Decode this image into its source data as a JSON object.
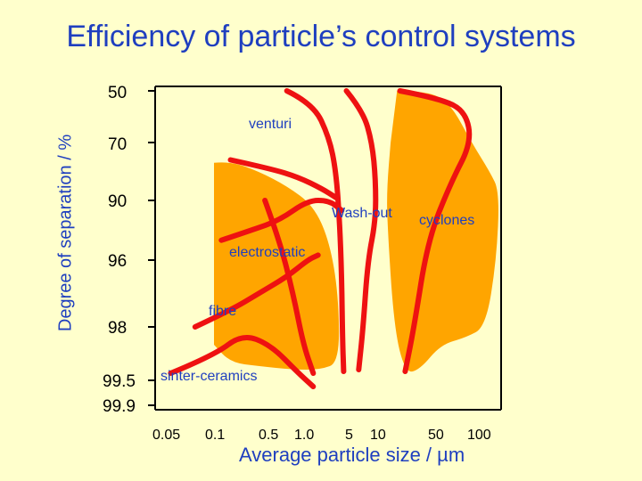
{
  "colors": {
    "background": "#ffffcc",
    "title": "#1f3fbf",
    "region_fill": "#ffa500",
    "curve": "#ee1111"
  },
  "chart_data": {
    "type": "area",
    "title": "Efficiency of particle’s control systems",
    "xlabel": "Average particle size / µm",
    "ylabel": "Degree of separation / %",
    "x_axis": {
      "scale": "log",
      "range": [
        0.05,
        150
      ],
      "ticks": [
        "0.05",
        "0.1",
        "0.5",
        "1.0",
        "5",
        "10",
        "50",
        "100"
      ]
    },
    "y_axis": {
      "scale": "nonlinear",
      "direction": "increasing downward",
      "ticks": [
        "50",
        "70",
        "90",
        "96",
        "98",
        "99.5",
        "99.9"
      ]
    },
    "grid": false,
    "regions": [
      {
        "name": "electrostatic",
        "points": [
          [
            0.1,
            77
          ],
          [
            0.15,
            76.5
          ],
          [
            0.3,
            80
          ],
          [
            0.6,
            85
          ],
          [
            1.2,
            90.5
          ],
          [
            2,
            94
          ],
          [
            2.7,
            97
          ],
          [
            2.8,
            99
          ],
          [
            1.5,
            99.2
          ],
          [
            0.7,
            99.2
          ],
          [
            0.3,
            99.1
          ],
          [
            0.15,
            99
          ],
          [
            0.1,
            98.5
          ]
        ]
      },
      {
        "name": "cyclones",
        "points": [
          [
            15,
            50
          ],
          [
            30,
            50
          ],
          [
            50,
            55
          ],
          [
            80,
            70
          ],
          [
            120,
            80
          ],
          [
            150,
            87
          ],
          [
            140,
            96
          ],
          [
            110,
            98
          ],
          [
            70,
            98.3
          ],
          [
            40,
            98.5
          ],
          [
            25,
            99.2
          ],
          [
            18,
            99.3
          ],
          [
            14,
            98
          ],
          [
            12,
            92
          ],
          [
            12,
            85
          ],
          [
            13,
            70
          ]
        ]
      }
    ],
    "series": [
      {
        "name": "venturi",
        "points": [
          [
            0.6,
            50
          ],
          [
            1.2,
            55
          ],
          [
            2,
            68
          ],
          [
            2.5,
            80
          ],
          [
            2.8,
            92
          ],
          [
            3,
            96.5
          ],
          [
            3.1,
            98.5
          ],
          [
            3.2,
            99.25
          ]
        ]
      },
      {
        "name": "Wash-out",
        "points": [
          [
            3.5,
            50
          ],
          [
            6,
            58
          ],
          [
            8,
            70
          ],
          [
            9,
            83
          ],
          [
            9,
            92
          ],
          [
            7,
            96
          ],
          [
            6,
            98
          ],
          [
            5.2,
            99.2
          ]
        ]
      },
      {
        "name": "cyclones",
        "points": [
          [
            16,
            50
          ],
          [
            40,
            53
          ],
          [
            70,
            58
          ],
          [
            80,
            70
          ],
          [
            50,
            84
          ],
          [
            30,
            94
          ],
          [
            22,
            98
          ],
          [
            18,
            99.25
          ]
        ]
      },
      {
        "name": "electrostatic",
        "points": [
          [
            0.15,
            76
          ],
          [
            0.4,
            79
          ],
          [
            0.8,
            82
          ],
          [
            1.6,
            86
          ],
          [
            2.5,
            89
          ]
        ]
      },
      {
        "name": "electrostatic",
        "points": [
          [
            0.12,
            94
          ],
          [
            0.25,
            93
          ],
          [
            0.5,
            92
          ],
          [
            1,
            90
          ],
          [
            2,
            90
          ],
          [
            3,
            91
          ]
        ]
      },
      {
        "name": "fibre",
        "points": [
          [
            0.08,
            98
          ],
          [
            0.15,
            97.5
          ],
          [
            0.3,
            97
          ],
          [
            0.6,
            96.5
          ],
          [
            1,
            96
          ],
          [
            1.4,
            95.5
          ]
        ]
      },
      {
        "name": "fibre",
        "points": [
          [
            0.35,
            90
          ],
          [
            0.5,
            94
          ],
          [
            0.7,
            97
          ],
          [
            0.9,
            98.5
          ],
          [
            1.2,
            99.3
          ]
        ]
      },
      {
        "name": "sinter-ceramics",
        "points": [
          [
            0.06,
            99.3
          ],
          [
            0.1,
            98.8
          ],
          [
            0.2,
            98.2
          ],
          [
            0.4,
            98.5
          ],
          [
            0.8,
            99.3
          ],
          [
            1.2,
            99.6
          ]
        ]
      }
    ],
    "annotations": [
      "venturi",
      "Wash-out",
      "cyclones",
      "electrostatic",
      "fibre",
      "sinter-ceramics"
    ]
  }
}
